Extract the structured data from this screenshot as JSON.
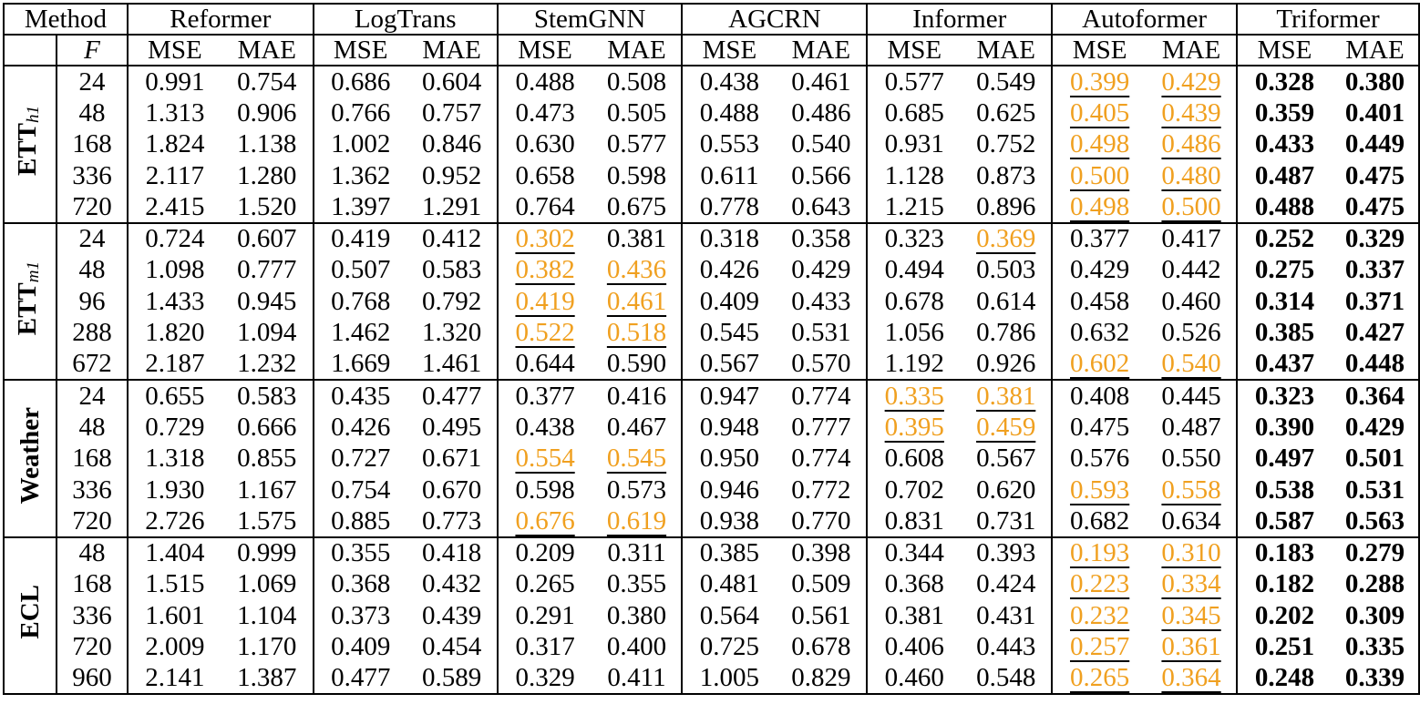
{
  "header": {
    "method_label": "Method",
    "f_label": "F",
    "metric_labels": [
      "MSE",
      "MAE"
    ],
    "methods": [
      "Reformer",
      "LogTrans",
      "StemGNN",
      "AGCRN",
      "Informer",
      "Autoformer",
      "Triformer"
    ]
  },
  "datasets": [
    {
      "name": "ETT",
      "subscript": "h1",
      "rows": [
        {
          "f": "24",
          "values": [
            "0.991",
            "0.754",
            "0.686",
            "0.604",
            "0.488",
            "0.508",
            "0.438",
            "0.461",
            "0.577",
            "0.549",
            "0.399",
            "0.429",
            "0.328",
            "0.380"
          ],
          "hl": [
            10,
            11
          ]
        },
        {
          "f": "48",
          "values": [
            "1.313",
            "0.906",
            "0.766",
            "0.757",
            "0.473",
            "0.505",
            "0.488",
            "0.486",
            "0.685",
            "0.625",
            "0.405",
            "0.439",
            "0.359",
            "0.401"
          ],
          "hl": [
            10,
            11
          ]
        },
        {
          "f": "168",
          "values": [
            "1.824",
            "1.138",
            "1.002",
            "0.846",
            "0.630",
            "0.577",
            "0.553",
            "0.540",
            "0.931",
            "0.752",
            "0.498",
            "0.486",
            "0.433",
            "0.449"
          ],
          "hl": [
            10,
            11
          ]
        },
        {
          "f": "336",
          "values": [
            "2.117",
            "1.280",
            "1.362",
            "0.952",
            "0.658",
            "0.598",
            "0.611",
            "0.566",
            "1.128",
            "0.873",
            "0.500",
            "0.480",
            "0.487",
            "0.475"
          ],
          "hl": [
            10,
            11
          ]
        },
        {
          "f": "720",
          "values": [
            "2.415",
            "1.520",
            "1.397",
            "1.291",
            "0.764",
            "0.675",
            "0.778",
            "0.643",
            "1.215",
            "0.896",
            "0.498",
            "0.500",
            "0.488",
            "0.475"
          ],
          "hl": [
            10,
            11
          ]
        }
      ]
    },
    {
      "name": "ETT",
      "subscript": "m1",
      "rows": [
        {
          "f": "24",
          "values": [
            "0.724",
            "0.607",
            "0.419",
            "0.412",
            "0.302",
            "0.381",
            "0.318",
            "0.358",
            "0.323",
            "0.369",
            "0.377",
            "0.417",
            "0.252",
            "0.329"
          ],
          "hl": [
            4,
            9
          ]
        },
        {
          "f": "48",
          "values": [
            "1.098",
            "0.777",
            "0.507",
            "0.583",
            "0.382",
            "0.436",
            "0.426",
            "0.429",
            "0.494",
            "0.503",
            "0.429",
            "0.442",
            "0.275",
            "0.337"
          ],
          "hl": [
            4,
            5
          ]
        },
        {
          "f": "96",
          "values": [
            "1.433",
            "0.945",
            "0.768",
            "0.792",
            "0.419",
            "0.461",
            "0.409",
            "0.433",
            "0.678",
            "0.614",
            "0.458",
            "0.460",
            "0.314",
            "0.371"
          ],
          "hl": [
            4,
            5
          ]
        },
        {
          "f": "288",
          "values": [
            "1.820",
            "1.094",
            "1.462",
            "1.320",
            "0.522",
            "0.518",
            "0.545",
            "0.531",
            "1.056",
            "0.786",
            "0.632",
            "0.526",
            "0.385",
            "0.427"
          ],
          "hl": [
            4,
            5
          ]
        },
        {
          "f": "672",
          "values": [
            "2.187",
            "1.232",
            "1.669",
            "1.461",
            "0.644",
            "0.590",
            "0.567",
            "0.570",
            "1.192",
            "0.926",
            "0.602",
            "0.540",
            "0.437",
            "0.448"
          ],
          "hl": [
            10,
            11
          ]
        }
      ]
    },
    {
      "name": "Weather",
      "subscript": "",
      "rows": [
        {
          "f": "24",
          "values": [
            "0.655",
            "0.583",
            "0.435",
            "0.477",
            "0.377",
            "0.416",
            "0.947",
            "0.774",
            "0.335",
            "0.381",
            "0.408",
            "0.445",
            "0.323",
            "0.364"
          ],
          "hl": [
            8,
            9
          ]
        },
        {
          "f": "48",
          "values": [
            "0.729",
            "0.666",
            "0.426",
            "0.495",
            "0.438",
            "0.467",
            "0.948",
            "0.777",
            "0.395",
            "0.459",
            "0.475",
            "0.487",
            "0.390",
            "0.429"
          ],
          "hl": [
            8,
            9
          ]
        },
        {
          "f": "168",
          "values": [
            "1.318",
            "0.855",
            "0.727",
            "0.671",
            "0.554",
            "0.545",
            "0.950",
            "0.774",
            "0.608",
            "0.567",
            "0.576",
            "0.550",
            "0.497",
            "0.501"
          ],
          "hl": [
            4,
            5
          ]
        },
        {
          "f": "336",
          "values": [
            "1.930",
            "1.167",
            "0.754",
            "0.670",
            "0.598",
            "0.573",
            "0.946",
            "0.772",
            "0.702",
            "0.620",
            "0.593",
            "0.558",
            "0.538",
            "0.531"
          ],
          "hl": [
            10,
            11
          ]
        },
        {
          "f": "720",
          "values": [
            "2.726",
            "1.575",
            "0.885",
            "0.773",
            "0.676",
            "0.619",
            "0.938",
            "0.770",
            "0.831",
            "0.731",
            "0.682",
            "0.634",
            "0.587",
            "0.563"
          ],
          "hl": [
            4,
            5
          ]
        }
      ]
    },
    {
      "name": "ECL",
      "subscript": "",
      "rows": [
        {
          "f": "48",
          "values": [
            "1.404",
            "0.999",
            "0.355",
            "0.418",
            "0.209",
            "0.311",
            "0.385",
            "0.398",
            "0.344",
            "0.393",
            "0.193",
            "0.310",
            "0.183",
            "0.279"
          ],
          "hl": [
            10,
            11
          ]
        },
        {
          "f": "168",
          "values": [
            "1.515",
            "1.069",
            "0.368",
            "0.432",
            "0.265",
            "0.355",
            "0.481",
            "0.509",
            "0.368",
            "0.424",
            "0.223",
            "0.334",
            "0.182",
            "0.288"
          ],
          "hl": [
            10,
            11
          ]
        },
        {
          "f": "336",
          "values": [
            "1.601",
            "1.104",
            "0.373",
            "0.439",
            "0.291",
            "0.380",
            "0.564",
            "0.561",
            "0.381",
            "0.431",
            "0.232",
            "0.345",
            "0.202",
            "0.309"
          ],
          "hl": [
            10,
            11
          ]
        },
        {
          "f": "720",
          "values": [
            "2.009",
            "1.170",
            "0.409",
            "0.454",
            "0.317",
            "0.400",
            "0.725",
            "0.678",
            "0.406",
            "0.443",
            "0.257",
            "0.361",
            "0.251",
            "0.335"
          ],
          "hl": [
            10,
            11
          ]
        },
        {
          "f": "960",
          "values": [
            "2.141",
            "1.387",
            "0.477",
            "0.589",
            "0.329",
            "0.411",
            "1.005",
            "0.829",
            "0.460",
            "0.548",
            "0.265",
            "0.364",
            "0.248",
            "0.339"
          ],
          "hl": [
            10,
            11
          ]
        }
      ]
    }
  ],
  "colors": {
    "highlight": "#f0a020",
    "text": "#000000",
    "rule": "#000000"
  }
}
